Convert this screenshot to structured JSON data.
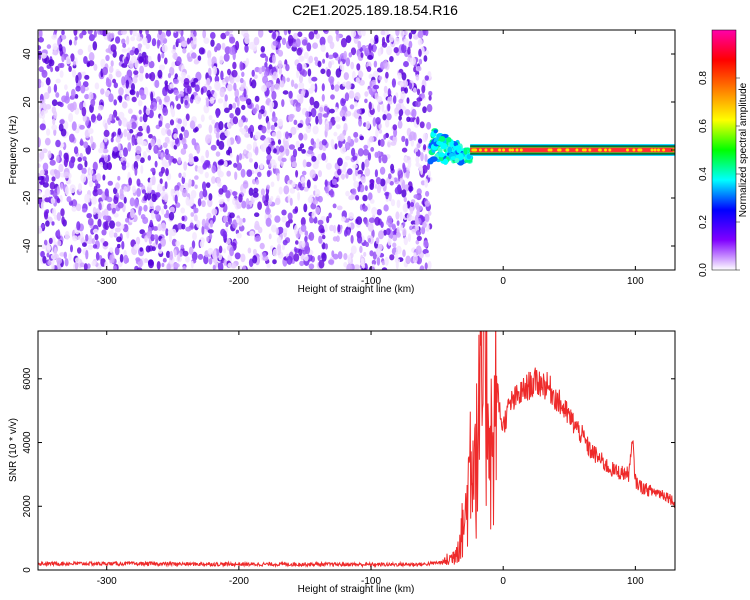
{
  "title": "C2E1.2025.189.18.54.R16",
  "colors": {
    "snr_line": "#ee2a2a",
    "spectrogram_noise": "#6a12e0",
    "axis": "#000000"
  },
  "chart_data": [
    {
      "type": "heatmap",
      "xlabel": "Height of straight line (km)",
      "ylabel": "Frequency (Hz)",
      "xlim": [
        -352,
        130
      ],
      "ylim": [
        -50,
        50
      ],
      "xticks": [
        -300,
        -200,
        -100,
        0,
        100
      ],
      "yticks": [
        -40,
        -20,
        0,
        20,
        40
      ],
      "grid": false,
      "regions": [
        {
          "name": "noise",
          "x_range": [
            -352,
            -55
          ],
          "freq_range": [
            -50,
            50
          ],
          "amplitude_range": [
            0.0,
            0.15
          ]
        },
        {
          "name": "transition",
          "x_range": [
            -55,
            -25
          ],
          "freq_range": [
            -5,
            10
          ],
          "amplitude_range": [
            0.2,
            0.9
          ]
        },
        {
          "name": "tone",
          "x_range": [
            -25,
            130
          ],
          "freq": 0,
          "amplitude": 0.95
        }
      ],
      "colorbar": {
        "label": "Normalized spectral amplitude",
        "range": [
          0,
          1
        ],
        "ticks": [
          "0.0",
          "0.2",
          "0.4",
          "0.6",
          "0.8"
        ],
        "tick_values": [
          0.0,
          0.2,
          0.4,
          0.6,
          0.8
        ],
        "colormap": [
          "#ffffff",
          "#8000ff",
          "#0000ff",
          "#00ffff",
          "#00ff00",
          "#ffff00",
          "#ff8000",
          "#ff0000",
          "#ff00aa"
        ]
      }
    },
    {
      "type": "line",
      "xlabel": "Height of straight line (km)",
      "ylabel": "SNR (10 * v/v)",
      "xlim": [
        -352,
        130
      ],
      "ylim": [
        0,
        7500
      ],
      "xticks": [
        -300,
        -200,
        -100,
        0,
        100
      ],
      "yticks": [
        0,
        2000,
        4000,
        6000
      ],
      "grid": false,
      "series": [
        {
          "x": [
            -352,
            -300,
            -250,
            -200,
            -150,
            -100,
            -60,
            -45,
            -38,
            -33,
            -28,
            -24,
            -20,
            -17,
            -14,
            -11,
            -8,
            -5,
            -2,
            0,
            5,
            10,
            15,
            20,
            25,
            30,
            35,
            40,
            45,
            50,
            55,
            60,
            65,
            70,
            75,
            80,
            85,
            90,
            95,
            98,
            100,
            102,
            105,
            110,
            115,
            120,
            125,
            130
          ],
          "y": [
            200,
            200,
            190,
            180,
            180,
            170,
            180,
            250,
            400,
            900,
            1800,
            4200,
            3500,
            5200,
            6500,
            5600,
            3200,
            5800,
            4800,
            4500,
            5200,
            5400,
            5600,
            5800,
            5900,
            5850,
            5700,
            5400,
            5100,
            4800,
            4500,
            4200,
            3800,
            3600,
            3400,
            3200,
            3100,
            3050,
            3000,
            4000,
            2800,
            2700,
            2600,
            2500,
            2450,
            2400,
            2300,
            2100
          ]
        }
      ]
    }
  ]
}
